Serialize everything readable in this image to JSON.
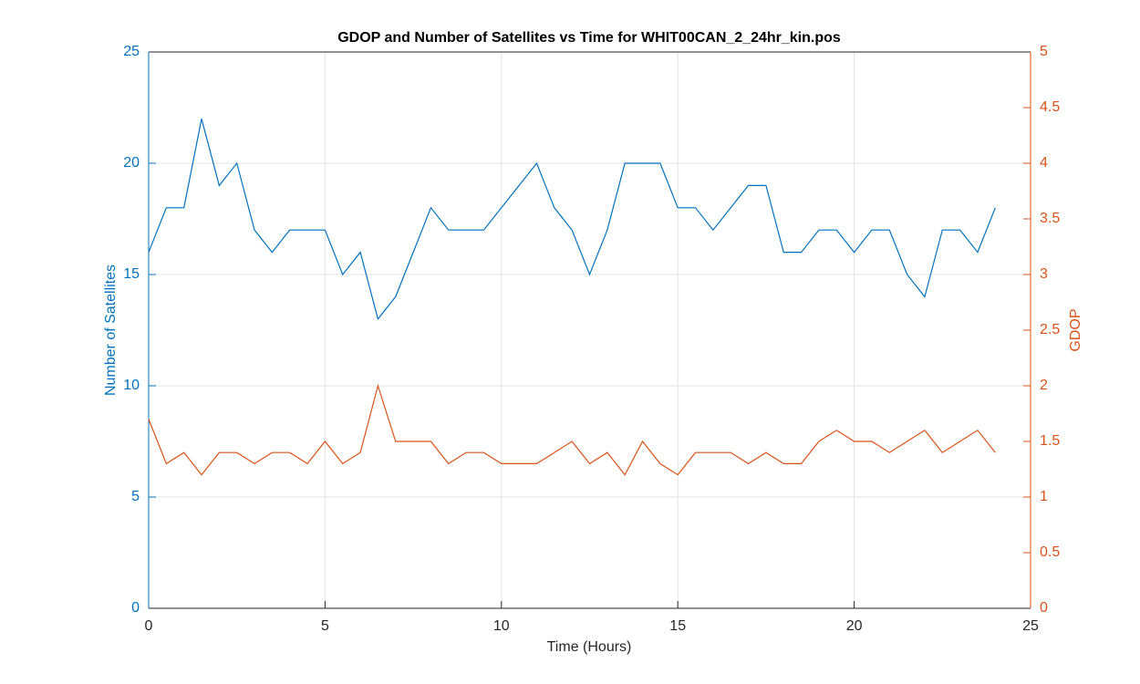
{
  "chart_data": {
    "type": "line",
    "title": "GDOP and Number of Satellites vs Time for WHIT00CAN_2_24hr_kin.pos",
    "x_label": "Time (Hours)",
    "y_label": "Number of Satellites",
    "y2_label": "GDOP",
    "x": [
      0,
      0.5,
      1,
      1.5,
      2,
      2.5,
      3,
      3.5,
      4,
      4.5,
      5,
      5.5,
      6,
      6.5,
      7,
      7.5,
      8,
      8.5,
      9,
      9.5,
      10,
      10.5,
      11,
      11.5,
      12,
      12.5,
      13,
      13.5,
      14,
      14.5,
      15,
      15.5,
      16,
      16.5,
      17,
      17.5,
      18,
      18.5,
      19,
      19.5,
      20,
      20.5,
      21,
      21.5,
      22,
      22.5,
      23,
      23.5,
      24
    ],
    "series": [
      {
        "name": "Number of Satellites",
        "color": "#0072bd",
        "axis": "y",
        "values": [
          16,
          18,
          18,
          22,
          19,
          20,
          17,
          16,
          17,
          17,
          17,
          15,
          16,
          13,
          14,
          16,
          18,
          17,
          17,
          17,
          18,
          19,
          20,
          18,
          17,
          15,
          17,
          20,
          20,
          20,
          18,
          18,
          17,
          18,
          19,
          19,
          16,
          16,
          17,
          17,
          16,
          17,
          17,
          15,
          14,
          17,
          17,
          16,
          18
        ]
      },
      {
        "name": "GDOP",
        "color": "#d95319",
        "axis": "y2",
        "values": [
          1.7,
          1.3,
          1.4,
          1.2,
          1.4,
          1.4,
          1.3,
          1.4,
          1.4,
          1.3,
          1.5,
          1.3,
          1.4,
          2.0,
          1.5,
          1.5,
          1.5,
          1.3,
          1.4,
          1.4,
          1.3,
          1.3,
          1.3,
          1.4,
          1.5,
          1.3,
          1.4,
          1.2,
          1.5,
          1.3,
          1.2,
          1.4,
          1.4,
          1.4,
          1.3,
          1.4,
          1.3,
          1.3,
          1.5,
          1.6,
          1.5,
          1.5,
          1.4,
          1.5,
          1.6,
          1.4,
          1.5,
          1.6,
          1.4
        ]
      }
    ],
    "xlim": [
      0,
      25
    ],
    "xticks": [
      0,
      5,
      10,
      15,
      20,
      25
    ],
    "ylim": [
      0,
      25
    ],
    "yticks": [
      0,
      5,
      10,
      15,
      20,
      25
    ],
    "y2lim": [
      0,
      5
    ],
    "y2ticks": [
      0,
      0.5,
      1,
      1.5,
      2,
      2.5,
      3,
      3.5,
      4,
      4.5,
      5
    ],
    "grid": true
  }
}
